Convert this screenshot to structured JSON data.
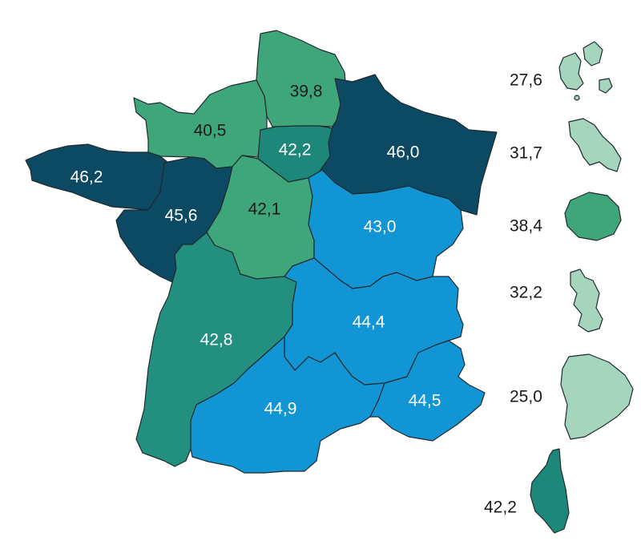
{
  "colors": {
    "very_light": "#a6d5be",
    "light_green": "#3fa67c",
    "teal": "#23907f",
    "mid_teal": "#1d8779",
    "dark_navy": "#0c4a63",
    "blue": "#1195d4"
  },
  "regions": {
    "hauts_de_france": {
      "value": "39,8"
    },
    "normandie": {
      "value": "40,5"
    },
    "ile_de_france": {
      "value": "42,2"
    },
    "grand_est": {
      "value": "46,0"
    },
    "bretagne": {
      "value": "46,2"
    },
    "pays_de_la_loire": {
      "value": "45,6"
    },
    "centre_val_de_loire": {
      "value": "42,1"
    },
    "bourgogne_franche_comte": {
      "value": "43,0"
    },
    "nouvelle_aquitaine": {
      "value": "42,8"
    },
    "auvergne_rhone_alpes": {
      "value": "44,4"
    },
    "occitanie": {
      "value": "44,9"
    },
    "provence_alpes_cote_azur": {
      "value": "44,5"
    }
  },
  "overseas": {
    "guadeloupe": {
      "value": "27,6"
    },
    "martinique": {
      "value": "31,7"
    },
    "reunion": {
      "value": "38,4"
    },
    "mayotte": {
      "value": "32,2"
    },
    "guyane": {
      "value": "25,0"
    },
    "corse": {
      "value": "42,2"
    }
  }
}
